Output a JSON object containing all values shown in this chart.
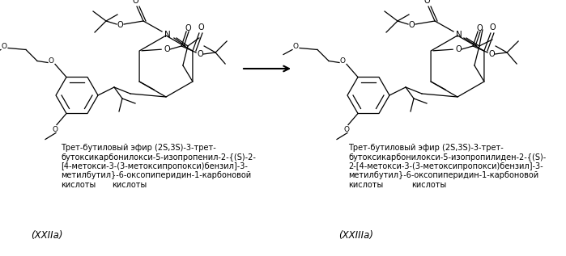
{
  "bg_color": "#ffffff",
  "arrow_color": "#000000",
  "text_color": "#000000",
  "label_left_lines": [
    "Трет-бутиловый эфир (2S,3S)-3-трет-",
    "бутоксикарбонилокси-5-изопропенил-2-{(S)-2-",
    "[4-метокси-3-(3-метоксипропокси)бензил]-3-",
    "метилбутил}-6-оксопиперидин-1-карбоновой",
    "кислоты"
  ],
  "label_right_lines": [
    "Трет-бутиловый эфир (2S,3S)-3-трет-",
    "бутоксикарбонилокси-5-изопропилиден-2-{(S)-",
    "2-[4-метокси-3-(3-метоксипропокси)бензил]-3-",
    "метилбутил}-6-оксопиперидин-1-карбоновой",
    "кислоты"
  ],
  "code_left": "(XXIIa)",
  "code_right": "(XXIIIa)",
  "label_fontsize": 7.0,
  "code_fontsize": 8.5,
  "fig_width": 6.99,
  "fig_height": 3.17,
  "dpi": 100
}
